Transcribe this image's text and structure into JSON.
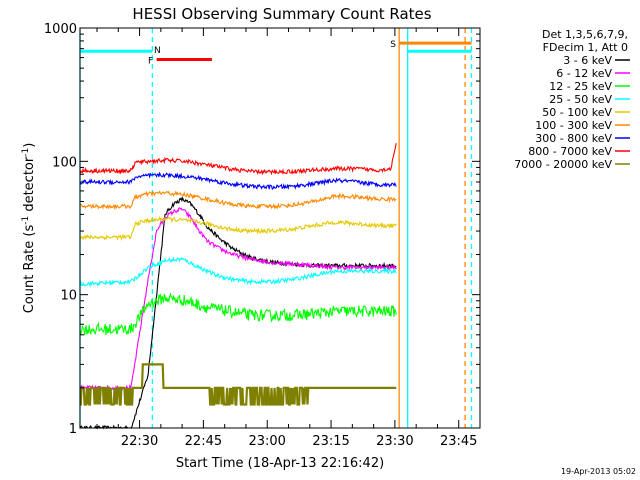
{
  "chart_data": {
    "type": "line",
    "title": "HESSI Observing Summary Count Rates",
    "xlabel": "Start Time (18-Apr-13 22:16:42)",
    "ylabel_main": "Count Rate (s",
    "ylabel_sup1": "-1",
    "ylabel_mid": " detector",
    "ylabel_sup2": "-1",
    "ylabel_end": ")",
    "yscale": "log",
    "ylim": [
      1,
      1000
    ],
    "xlim_minutes": [
      0,
      94
    ],
    "x_ticks": [
      {
        "min": 14,
        "label": "22:30"
      },
      {
        "min": 29,
        "label": "22:45"
      },
      {
        "min": 44,
        "label": "23:00"
      },
      {
        "min": 59,
        "label": "23:15"
      },
      {
        "min": 74,
        "label": "23:30"
      },
      {
        "min": 89,
        "label": "23:45"
      }
    ],
    "y_ticks": [
      {
        "v": 1,
        "label": "1"
      },
      {
        "v": 10,
        "label": "10"
      },
      {
        "v": 100,
        "label": "100"
      },
      {
        "v": 1000,
        "label": "1000"
      }
    ],
    "legend": {
      "placement": "right",
      "header": [
        "Det 1,3,5,6,7,9,",
        "FDecim 1, Att 0"
      ]
    },
    "series": [
      {
        "name": "3 - 6 keV",
        "color": "#000000",
        "x": [
          0,
          12,
          16,
          20,
          22,
          24,
          26,
          28,
          30,
          33,
          36,
          40,
          45,
          50,
          55,
          60,
          65,
          70,
          74.5
        ],
        "values": [
          1.0,
          1.0,
          2.5,
          40,
          48,
          52,
          48,
          40,
          32,
          26,
          22,
          19,
          17.5,
          17,
          16.5,
          16.5,
          16.5,
          16.5,
          16.5
        ]
      },
      {
        "name": "6 - 12 keV",
        "color": "#ff00ff",
        "x": [
          0,
          12,
          16,
          18,
          20,
          22,
          24,
          26,
          28,
          30,
          33,
          36,
          40,
          45,
          50,
          55,
          60,
          65,
          70,
          74.5
        ],
        "values": [
          2.0,
          2.0,
          13,
          30,
          38,
          42,
          44,
          38,
          30,
          25,
          22,
          20,
          18.5,
          17.5,
          17,
          16.5,
          16,
          16,
          16,
          16
        ]
      },
      {
        "name": "12 - 25 keV",
        "color": "#00ff00",
        "x": [
          0,
          12,
          16,
          20,
          25,
          30,
          35,
          40,
          45,
          50,
          55,
          60,
          65,
          70,
          74.5
        ],
        "values": [
          5.5,
          5.5,
          8.5,
          9.5,
          9,
          8,
          7.5,
          7,
          7,
          7,
          7.2,
          7.5,
          7.5,
          7.5,
          7.5
        ]
      },
      {
        "name": "25 - 50 keV",
        "color": "#00ffff",
        "x": [
          0,
          12,
          16,
          20,
          24,
          28,
          32,
          36,
          40,
          45,
          50,
          55,
          60,
          65,
          70,
          74.5
        ],
        "values": [
          12,
          12.5,
          16,
          18,
          18.5,
          16,
          14,
          13,
          12.5,
          12.5,
          13,
          14,
          15,
          15,
          15,
          15
        ]
      },
      {
        "name": "50 - 100 keV",
        "color": "#e6c800",
        "x": [
          0,
          12,
          13,
          16,
          20,
          25,
          30,
          35,
          40,
          45,
          50,
          55,
          60,
          65,
          70,
          74.5
        ],
        "values": [
          27,
          27,
          34,
          36,
          37,
          36,
          34,
          31,
          30,
          30,
          31,
          33,
          35,
          34,
          33,
          33
        ]
      },
      {
        "name": "100 - 300 keV",
        "color": "#ff8800",
        "x": [
          0,
          12,
          13,
          16,
          20,
          25,
          30,
          35,
          40,
          45,
          50,
          55,
          60,
          65,
          70,
          74.5
        ],
        "values": [
          46,
          46,
          54,
          57,
          58,
          56,
          52,
          48,
          46,
          46,
          47,
          50,
          55,
          54,
          52,
          52
        ]
      },
      {
        "name": "300 - 800 keV",
        "color": "#0000ff",
        "x": [
          0,
          12,
          13,
          16,
          20,
          25,
          30,
          35,
          40,
          45,
          50,
          55,
          60,
          65,
          70,
          74.5
        ],
        "values": [
          70,
          70,
          76,
          78,
          79,
          77,
          73,
          68,
          65,
          64,
          65,
          68,
          72,
          70,
          67,
          67
        ]
      },
      {
        "name": "800 - 7000 keV",
        "color": "#ff0000",
        "x": [
          0,
          12,
          13,
          16,
          20,
          25,
          30,
          35,
          40,
          45,
          50,
          55,
          60,
          65,
          70,
          73,
          74.5
        ],
        "values": [
          85,
          85,
          98,
          100,
          102,
          100,
          94,
          88,
          84,
          83,
          84,
          86,
          88,
          88,
          86,
          88,
          140
        ]
      },
      {
        "name": "7000 - 20000 keV",
        "color": "#808000",
        "x": [
          0,
          12,
          13,
          17,
          27,
          34,
          45,
          50,
          56,
          58,
          66,
          74.5
        ],
        "values": [
          1.6,
          1.6,
          2.5,
          3.0,
          2.0,
          1.6,
          1.5,
          1.5,
          2.0,
          2.5,
          2.4,
          2.4
        ]
      }
    ],
    "flags": [
      {
        "label": "F",
        "x1": 18,
        "x2": 31,
        "value": 580,
        "color": "#ff0000"
      },
      {
        "label": "S",
        "x1": 75,
        "x2": 92,
        "value": 770,
        "color": "#ff8800"
      },
      {
        "label": "N",
        "x1": 0,
        "x2": 17,
        "value": 670,
        "color": "#00ffff"
      },
      {
        "label": "",
        "x1": 77,
        "x2": 92,
        "value": 670,
        "color": "#00ffff"
      }
    ],
    "vlines": [
      {
        "x": 0,
        "color": "#00ffff",
        "style": "solid"
      },
      {
        "x": 17,
        "color": "#00ffff",
        "style": "dashed"
      },
      {
        "x": 75,
        "color": "#ff8800",
        "style": "solid"
      },
      {
        "x": 77,
        "color": "#00ffff",
        "style": "solid"
      },
      {
        "x": 90.5,
        "color": "#ff8800",
        "style": "dashed"
      },
      {
        "x": 92,
        "color": "#00ffff",
        "style": "dashed"
      }
    ],
    "grid": false
  },
  "footer": {
    "date": "19-Apr-2013 05:02"
  }
}
